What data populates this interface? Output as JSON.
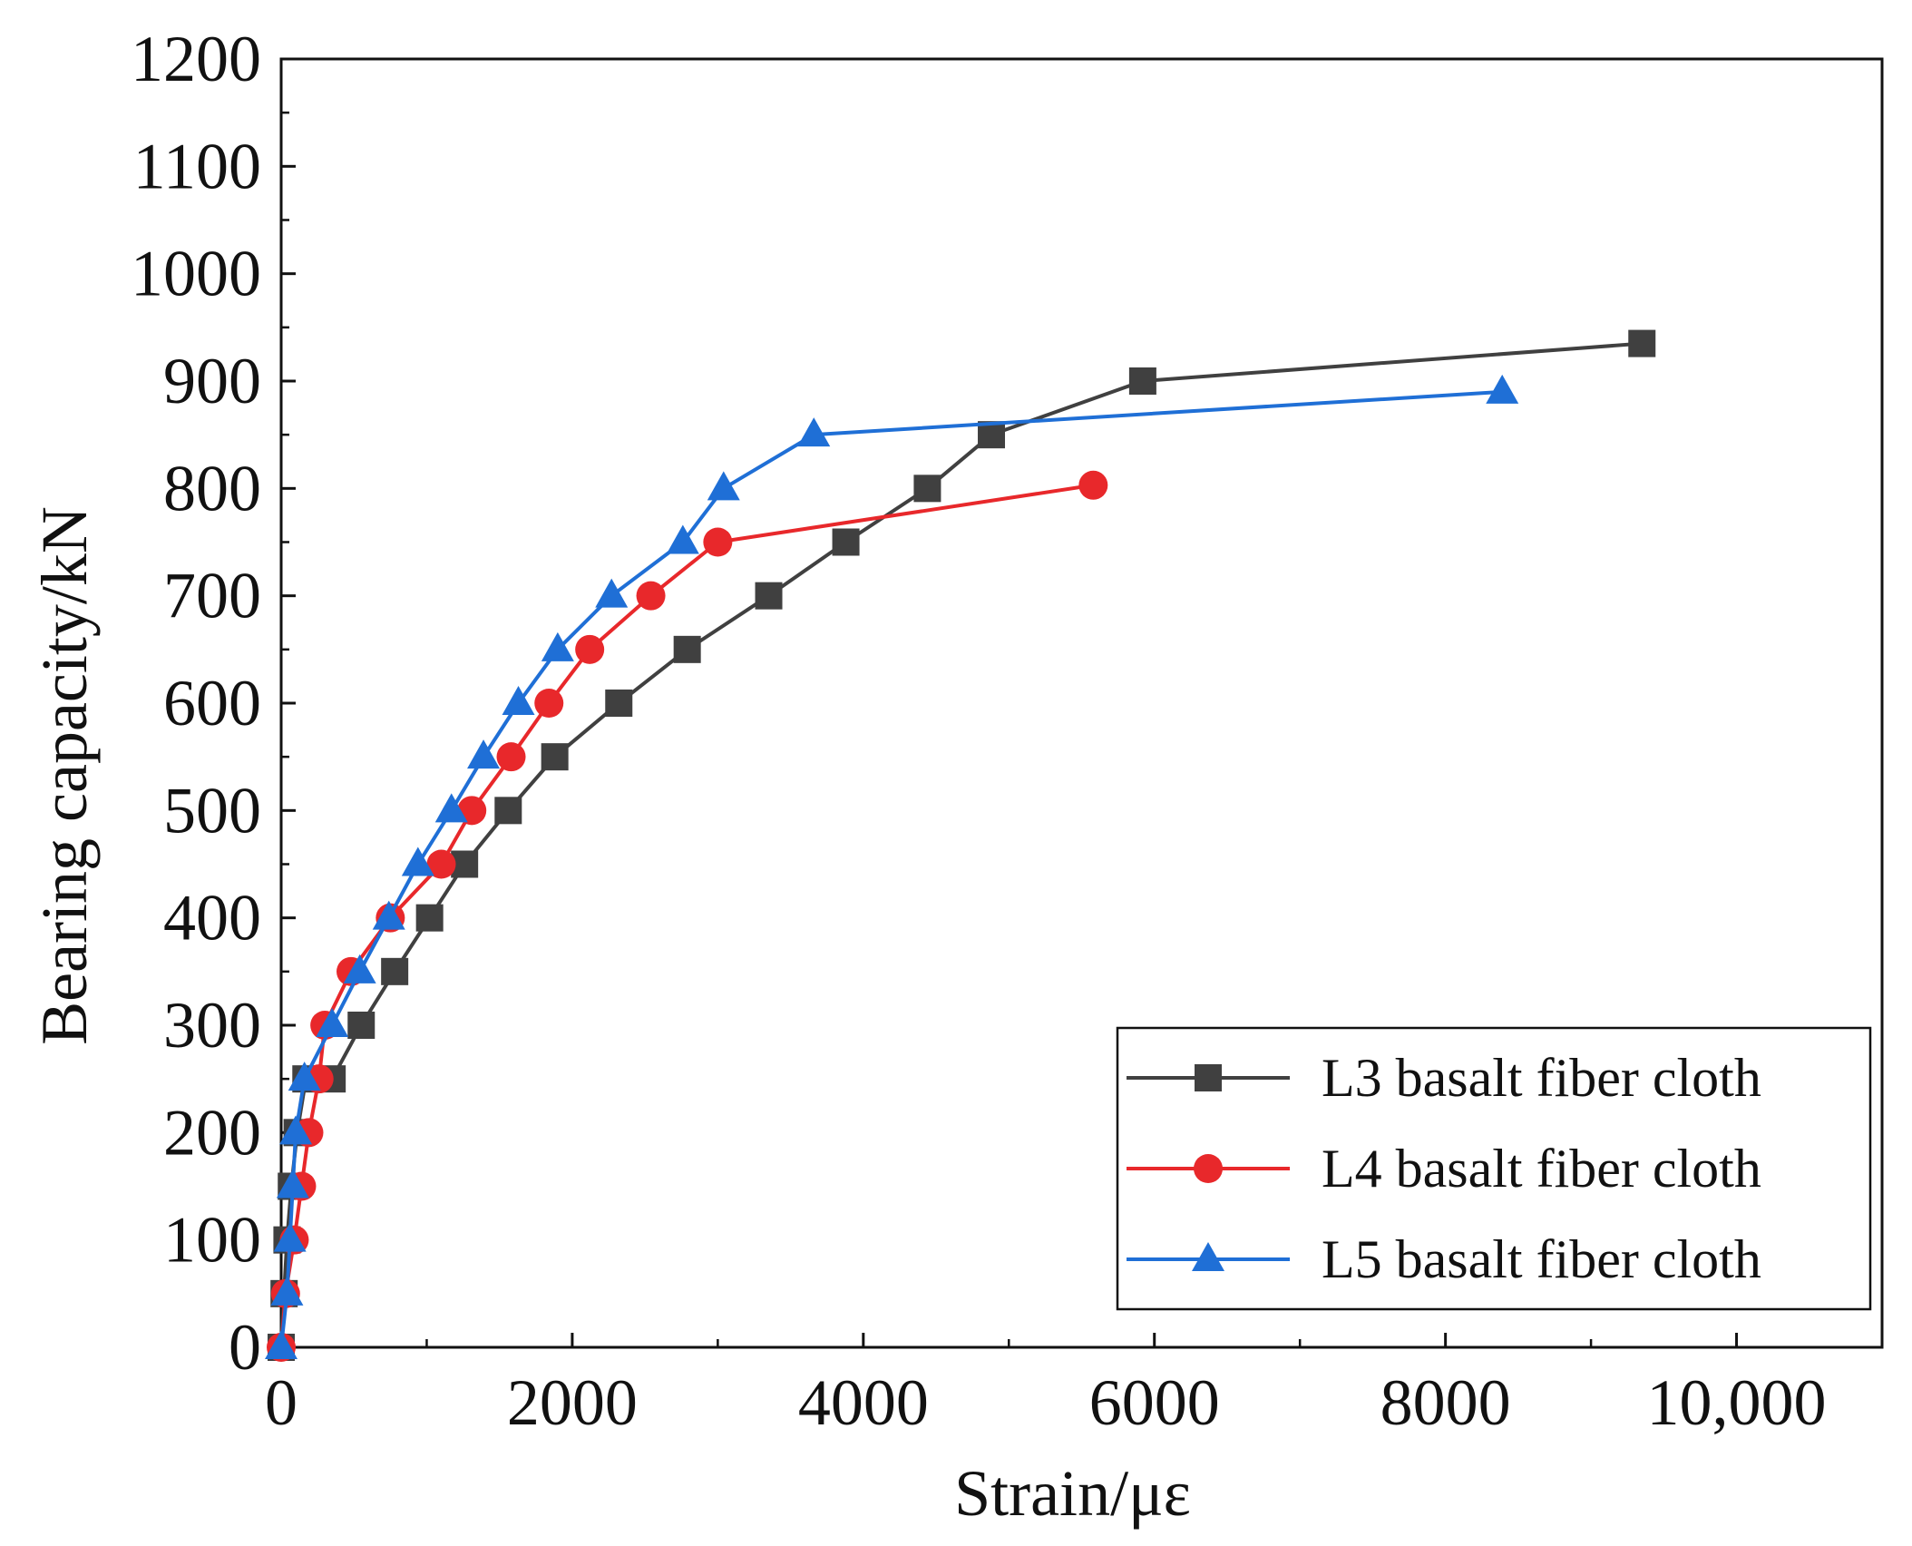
{
  "chart_data": {
    "type": "line",
    "title": "",
    "xlabel": "Strain/με",
    "ylabel": "Bearing capacity/kN",
    "xlim": [
      0,
      11000
    ],
    "ylim": [
      0,
      1200
    ],
    "x_ticks": [
      0,
      2000,
      4000,
      6000,
      8000,
      10000
    ],
    "x_tick_labels": [
      "0",
      "2000",
      "4000",
      "6000",
      "8000",
      "10,000"
    ],
    "y_ticks": [
      0,
      100,
      200,
      300,
      400,
      500,
      600,
      700,
      800,
      900,
      1000,
      1100,
      1200
    ],
    "y_tick_labels": [
      "0",
      "100",
      "200",
      "300",
      "400",
      "500",
      "600",
      "700",
      "800",
      "900",
      "1000",
      "1100",
      "1200"
    ],
    "grid": false,
    "legend_position": "bottom-right",
    "series": [
      {
        "name": "L3 basalt fiber cloth",
        "color": "#404040",
        "marker": "square",
        "x": [
          0,
          20,
          40,
          70,
          110,
          170,
          350,
          550,
          780,
          1020,
          1260,
          1560,
          1880,
          2320,
          2790,
          3350,
          3880,
          4440,
          4880,
          5920,
          9350
        ],
        "y": [
          0,
          50,
          100,
          150,
          200,
          250,
          250,
          300,
          350,
          400,
          450,
          500,
          550,
          600,
          650,
          700,
          750,
          800,
          850,
          900,
          935
        ]
      },
      {
        "name": "L4 basalt fiber cloth",
        "color": "#e8282b",
        "marker": "circle",
        "x": [
          0,
          30,
          90,
          140,
          190,
          260,
          300,
          480,
          750,
          1100,
          1310,
          1580,
          1840,
          2120,
          2540,
          3000,
          5580
        ],
        "y": [
          0,
          50,
          100,
          150,
          200,
          250,
          300,
          350,
          400,
          450,
          500,
          550,
          600,
          650,
          700,
          750,
          803
        ]
      },
      {
        "name": "L5 basalt fiber cloth",
        "color": "#1f6fd6",
        "marker": "triangle",
        "x": [
          0,
          40,
          60,
          80,
          100,
          160,
          350,
          540,
          740,
          940,
          1170,
          1390,
          1630,
          1900,
          2270,
          2760,
          3040,
          3660,
          8390
        ],
        "y": [
          0,
          50,
          100,
          150,
          200,
          250,
          300,
          350,
          400,
          450,
          500,
          550,
          600,
          650,
          700,
          750,
          800,
          850,
          890
        ]
      }
    ]
  }
}
